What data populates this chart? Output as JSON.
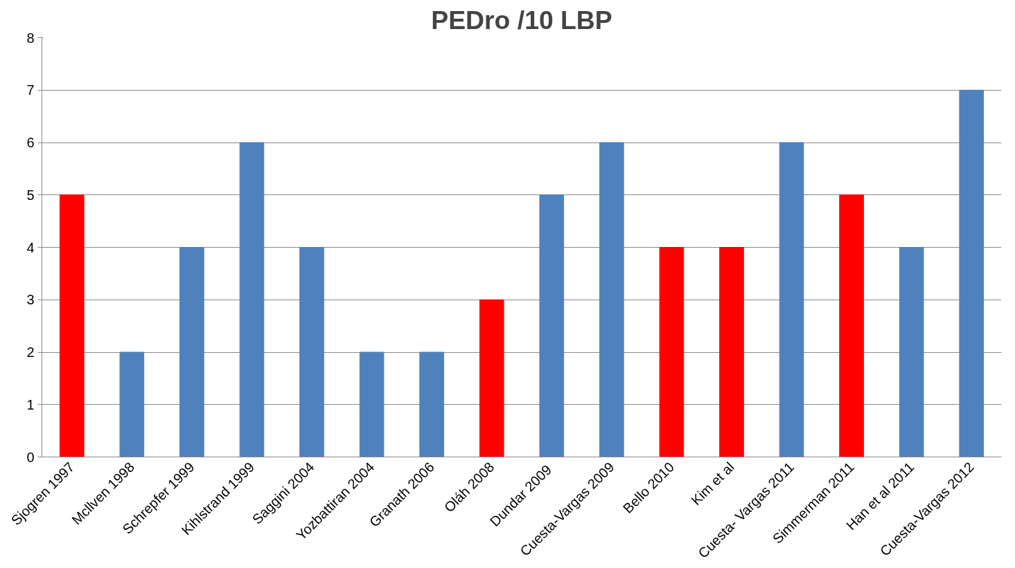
{
  "chart_data": {
    "type": "bar",
    "title": "PEDro /10 LBP",
    "categories": [
      "Sjogren 1997",
      "Mcllven 1998",
      "Schrepfer 1999",
      "Kihlstrand 1999",
      "Saggini 2004",
      "Yozbattiran 2004",
      "Granath 2006",
      "Oláh 2008",
      "Dundar  2009",
      "Cuesta-Vargas 2009",
      "Bello 2010",
      "Kim et al",
      "Cuesta- Vargas 2011",
      "Simmerman 2011",
      "Han et al 2011",
      "Cuesta-Vargas 2012"
    ],
    "values": [
      5,
      2,
      4,
      6,
      4,
      2,
      2,
      3,
      5,
      6,
      4,
      4,
      6,
      5,
      4,
      7
    ],
    "colors": [
      "#ff0000",
      "#4f81bd",
      "#4f81bd",
      "#4f81bd",
      "#4f81bd",
      "#4f81bd",
      "#4f81bd",
      "#ff0000",
      "#4f81bd",
      "#4f81bd",
      "#ff0000",
      "#ff0000",
      "#4f81bd",
      "#ff0000",
      "#4f81bd",
      "#4f81bd"
    ],
    "ylim": [
      0,
      8
    ],
    "yticks": [
      0,
      1,
      2,
      3,
      4,
      5,
      6,
      7,
      8
    ],
    "grid": "y"
  }
}
